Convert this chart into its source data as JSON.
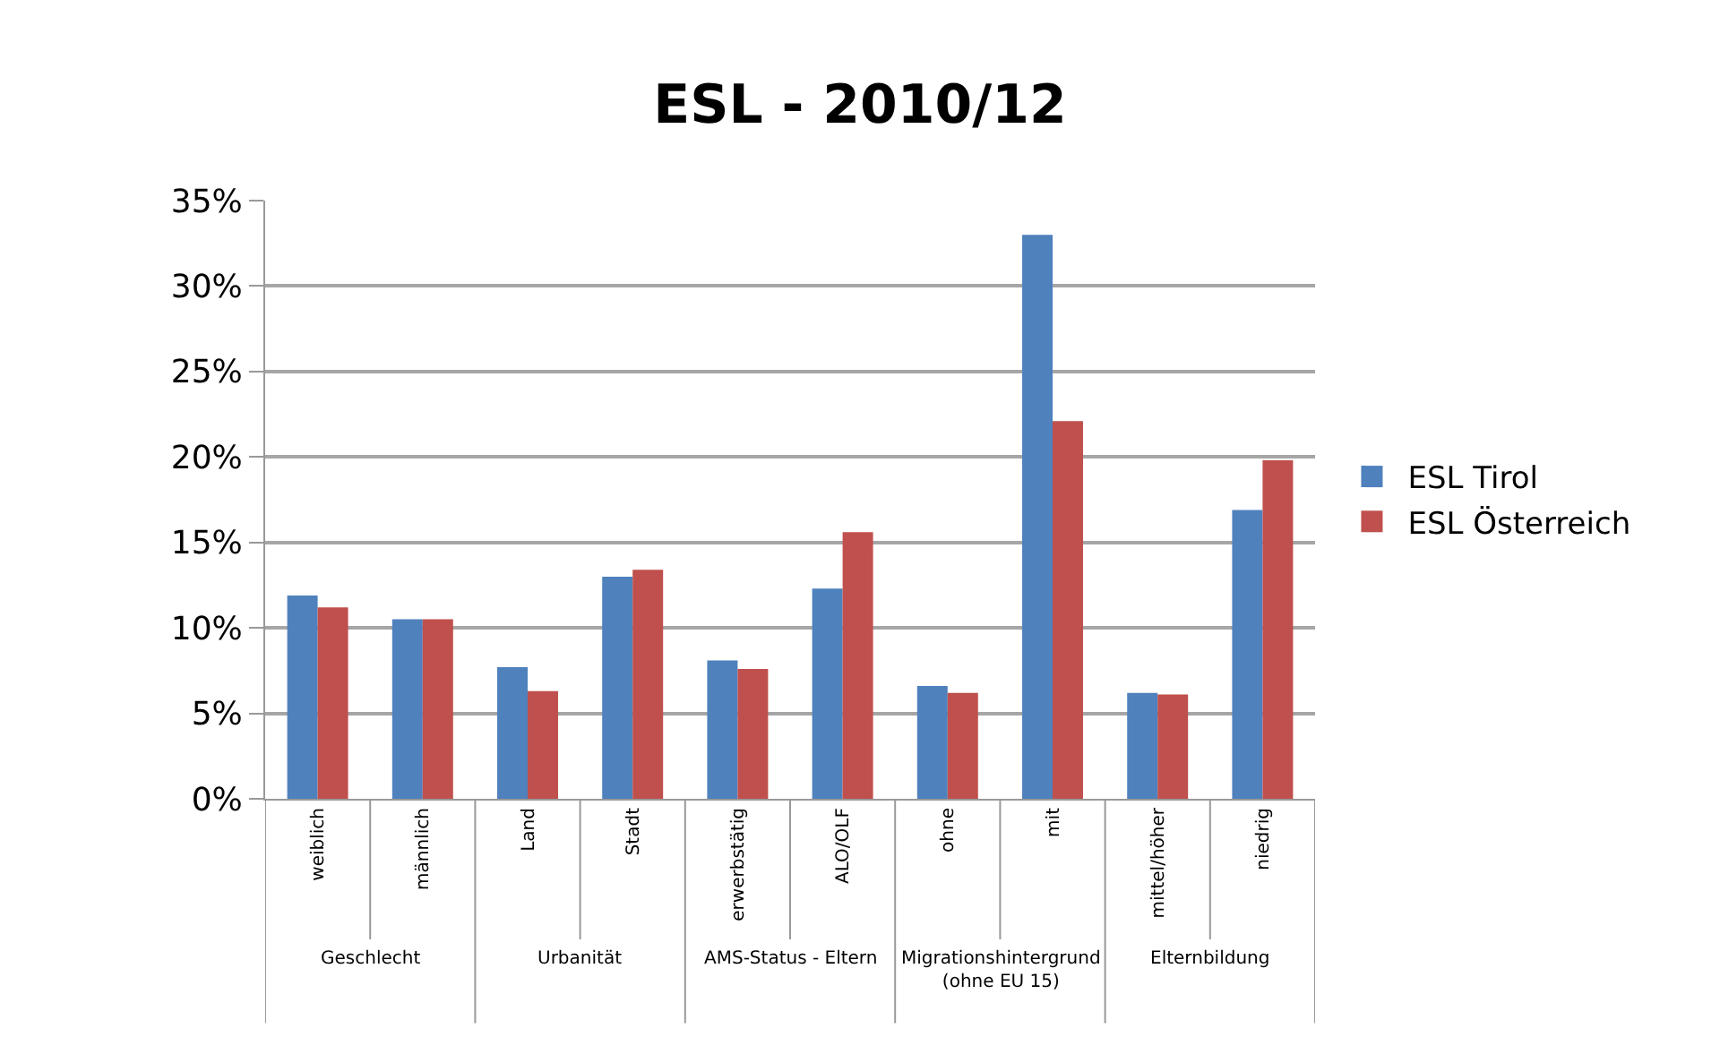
{
  "chart_data": {
    "type": "bar",
    "title": "ESL - 2010/12",
    "categories": [
      "weiblich",
      "männlich",
      "Land",
      "Stadt",
      "erwerbstätig",
      "ALO/OLF",
      "ohne",
      "mit",
      "mittel/höher",
      "niedrig"
    ],
    "series": [
      {
        "name": "ESL Tirol",
        "color": "#4f81bd",
        "values": [
          11.9,
          10.5,
          7.7,
          13.0,
          8.1,
          12.3,
          6.6,
          33.0,
          6.2,
          16.9
        ]
      },
      {
        "name": "ESL Österreich",
        "color": "#c0504d",
        "values": [
          11.2,
          10.5,
          6.3,
          13.4,
          7.6,
          15.6,
          6.2,
          22.1,
          6.1,
          19.8
        ]
      }
    ],
    "annotations": [
      "Geschlecht",
      "Urbanität",
      "AMS-Status - Eltern",
      "Migrationshintergrund\n(ohne EU 15)",
      "Elternbildung"
    ],
    "ylim": [
      0,
      35
    ],
    "yticks": [
      {
        "value": 0,
        "label": "0%"
      },
      {
        "value": 5,
        "label": "5%"
      },
      {
        "value": 10,
        "label": "10%"
      },
      {
        "value": 15,
        "label": "15%"
      },
      {
        "value": 20,
        "label": "20%"
      },
      {
        "value": 25,
        "label": "25%"
      },
      {
        "value": 30,
        "label": "30%"
      },
      {
        "value": 35,
        "label": "35%"
      }
    ],
    "grid": "y",
    "legend": "right"
  }
}
